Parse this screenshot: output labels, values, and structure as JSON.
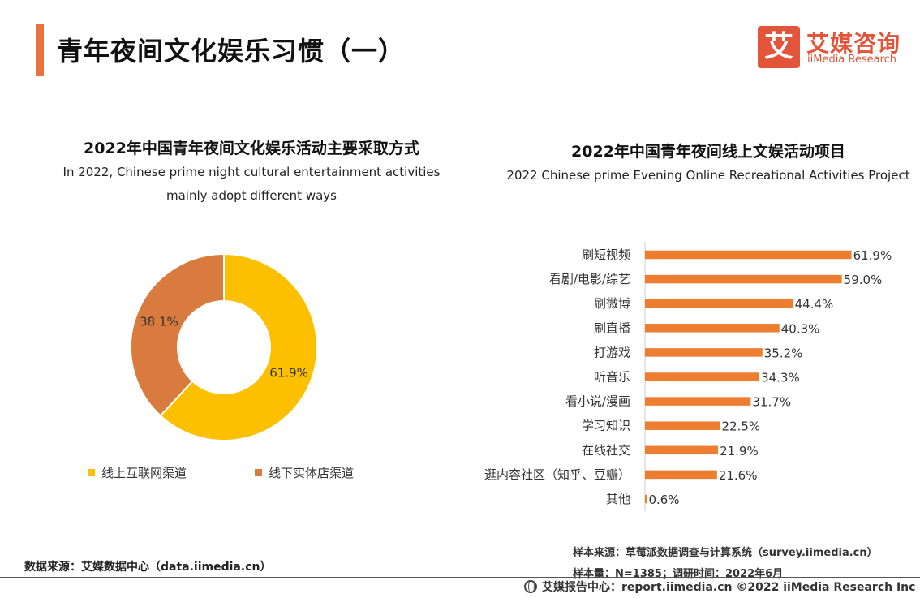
{
  "page": {
    "title": "青年夜间文化娱乐习惯（一）"
  },
  "logo": {
    "mark": "艾",
    "cn": "艾媒咨询",
    "en": "iiMedia Research"
  },
  "colors": {
    "accent": "#e8733f",
    "donut_online": "#fdc000",
    "donut_offline": "#d97b3e",
    "bar": "#ed7d31"
  },
  "chart_data": [
    {
      "type": "pie",
      "variant": "donut",
      "title": "2022年中国青年夜间文化娱乐活动主要采取方式",
      "subtitle": "In 2022, Chinese prime night cultural entertainment activities mainly adopt different ways",
      "labels": [
        "线上互联网渠道",
        "线下实体店渠道"
      ],
      "values": [
        61.9,
        38.1
      ],
      "value_labels": [
        "61.9%",
        "38.1%"
      ],
      "colors": [
        "#fdc000",
        "#d97b3e"
      ],
      "legend": "bottom"
    },
    {
      "type": "bar",
      "orientation": "horizontal",
      "title": "2022年中国青年夜间线上文娱活动项目",
      "subtitle": "2022 Chinese prime Evening Online Recreational Activities Project",
      "categories": [
        "刷短视频",
        "看剧/电影/综艺",
        "刷微博",
        "刷直播",
        "打游戏",
        "听音乐",
        "看小说/漫画",
        "学习知识",
        "在线社交",
        "逛内容社区（知乎、豆瓣）",
        "其他"
      ],
      "values": [
        61.9,
        59.0,
        44.4,
        40.3,
        35.2,
        34.3,
        31.7,
        22.5,
        21.9,
        21.6,
        0.6
      ],
      "value_labels": [
        "61.9%",
        "59.0%",
        "44.4%",
        "40.3%",
        "35.2%",
        "34.3%",
        "31.7%",
        "22.5%",
        "21.9%",
        "21.6%",
        "0.6%"
      ],
      "xlim": [
        0,
        65
      ],
      "color": "#ed7d31"
    }
  ],
  "footer": {
    "sample_source": "样本来源：草莓派数据调查与计算系统（survey.iimedia.cn）",
    "sample_size": "样本量：N=1385；调研时间：2022年6月",
    "data_source": "数据来源：艾媒数据中心（data.iimedia.cn）",
    "copyright": "艾媒报告中心：report.iimedia.cn  ©2022  iiMedia Research  Inc"
  }
}
